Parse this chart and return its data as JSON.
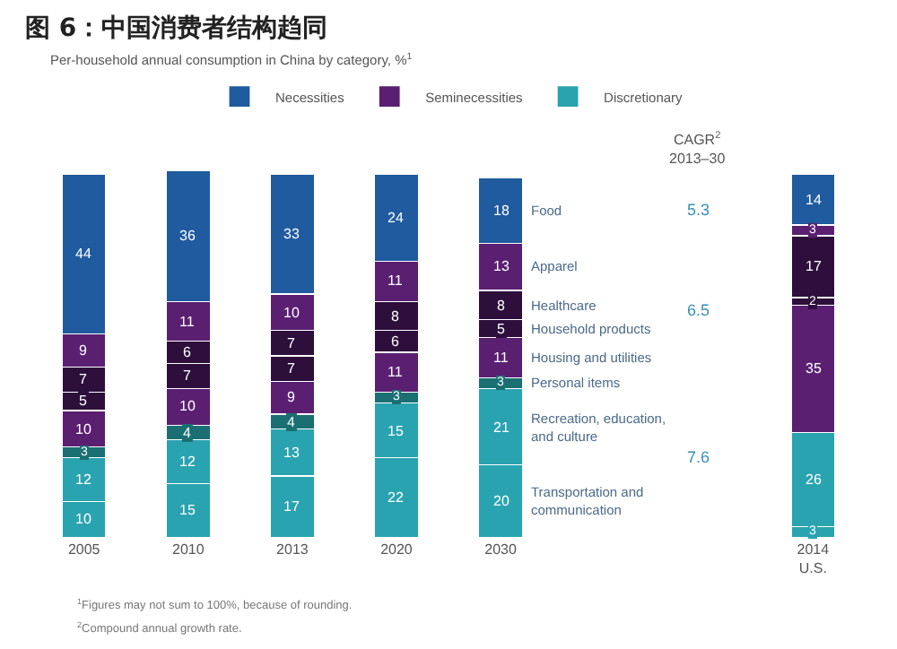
{
  "chart_data": {
    "type": "bar",
    "stacked": true,
    "title": "图 6：中国消费者结构趋同",
    "subtitle": "Per-household annual consumption in China by category, %$^{1}$",
    "categories": [
      "2005",
      "2010",
      "2013",
      "2020",
      "2030",
      null,
      null,
      "2014\nU.S."
    ],
    "series": [
      {
        "color": "#2aa3b0",
        "values": [
          10,
          15,
          17,
          22,
          20,
          null,
          null,
          3
        ]
      },
      {
        "name": "Discretionary",
        "color": "#2aa3b0",
        "values": [
          12,
          12,
          13,
          15,
          21,
          null,
          null,
          26
        ]
      },
      {
        "color": "#1a6f72",
        "values": [
          3,
          4,
          4,
          3,
          3,
          null,
          null,
          null
        ]
      },
      {
        "color": "#5b1f72",
        "values": [
          10,
          10,
          9,
          11,
          11,
          null,
          null,
          35
        ]
      },
      {
        "color": "#2e0f3c",
        "values": [
          5,
          7,
          7,
          6,
          5,
          null,
          null,
          2
        ]
      },
      {
        "color": "#2e0f3c",
        "values": [
          7,
          6,
          7,
          8,
          8,
          null,
          null,
          17
        ]
      },
      {
        "name": "Seminecessities",
        "color": "#5b1f72",
        "values": [
          9,
          11,
          10,
          11,
          13,
          null,
          null,
          3
        ]
      },
      {
        "name": "Necessities",
        "color": "#1f5b9e",
        "values": [
          44,
          36,
          33,
          24,
          18,
          null,
          null,
          14
        ]
      }
    ],
    "data_labels": true,
    "ylim": [
      0,
      101
    ],
    "tick_labels": "x",
    "legend": "top",
    "annotations": [
      "Transportation and\ncommunication",
      "Recreation, education,\nand culture",
      "Personal items",
      "Housing and utilities",
      "Household products",
      "Healthcare",
      "Apparel",
      "Food",
      "CAGR$^{2}$\n2013–30",
      "5.3",
      "6.5",
      "7.6",
      "$^{1}$Figures may not sum to 100%, because of rounding.",
      "$^{2}$Compound annual growth rate."
    ]
  }
}
